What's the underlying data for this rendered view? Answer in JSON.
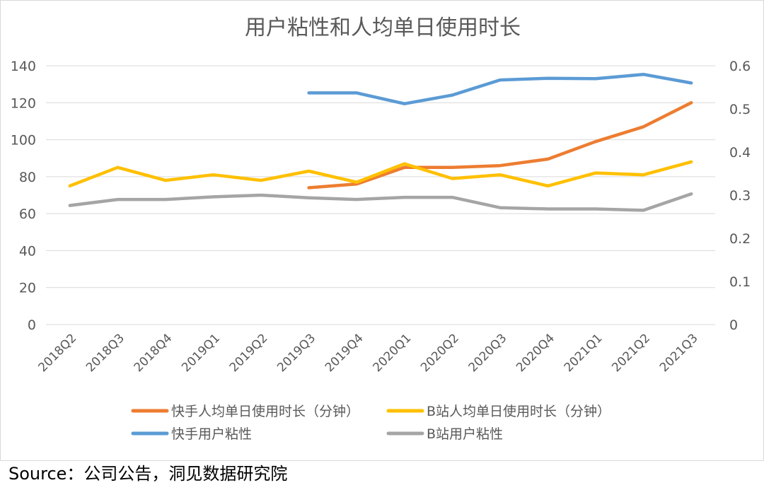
{
  "source_label": "Source：公司公告，洞见数据研究院",
  "colors": {
    "kuaishou_time": "#ED7D31",
    "bili_time": "#FFC000",
    "kuaishou_stick": "#5B9BD5",
    "bili_stick": "#A5A5A5",
    "grid": "#d9d9d9",
    "text": "#595959"
  },
  "chart_data": {
    "type": "line",
    "title": "用户粘性和人均单日使用时长",
    "categories": [
      "2018Q2",
      "2018Q3",
      "2018Q4",
      "2019Q1",
      "2019Q2",
      "2019Q3",
      "2019Q4",
      "2020Q1",
      "2020Q2",
      "2020Q3",
      "2020Q4",
      "2021Q1",
      "2021Q2",
      "2021Q3"
    ],
    "y_left": {
      "ticks": [
        "0",
        "20",
        "40",
        "60",
        "80",
        "100",
        "120",
        "140"
      ],
      "ylim": [
        0,
        140
      ]
    },
    "y_right": {
      "ticks": [
        "0",
        "0.1",
        "0.2",
        "0.3",
        "0.4",
        "0.5",
        "0.6"
      ],
      "ylim": [
        0,
        0.6
      ]
    },
    "series": [
      {
        "name": "快手人均单日使用时长（分钟）",
        "axis": "left",
        "color": "#ED7D31",
        "values": [
          null,
          null,
          null,
          null,
          null,
          74,
          76,
          85,
          85,
          86,
          89.5,
          99,
          107,
          120
        ]
      },
      {
        "name": "B站人均单日使用时长（分钟）",
        "axis": "left",
        "color": "#FFC000",
        "values": [
          75,
          85,
          78,
          81,
          78,
          83,
          77,
          87,
          79,
          81,
          75,
          82,
          81,
          88
        ]
      },
      {
        "name": "快手用户粘性",
        "axis": "right",
        "color": "#5B9BD5",
        "values": [
          null,
          null,
          null,
          null,
          null,
          0.537,
          0.537,
          0.512,
          0.532,
          0.567,
          0.571,
          0.57,
          0.58,
          0.56
        ]
      },
      {
        "name": "B站用户粘性",
        "axis": "right",
        "color": "#A5A5A5",
        "values": [
          0.276,
          0.29,
          0.29,
          0.296,
          0.3,
          0.294,
          0.29,
          0.295,
          0.295,
          0.271,
          0.268,
          0.268,
          0.265,
          0.303
        ]
      }
    ],
    "legend_position": "bottom",
    "grid": true
  }
}
